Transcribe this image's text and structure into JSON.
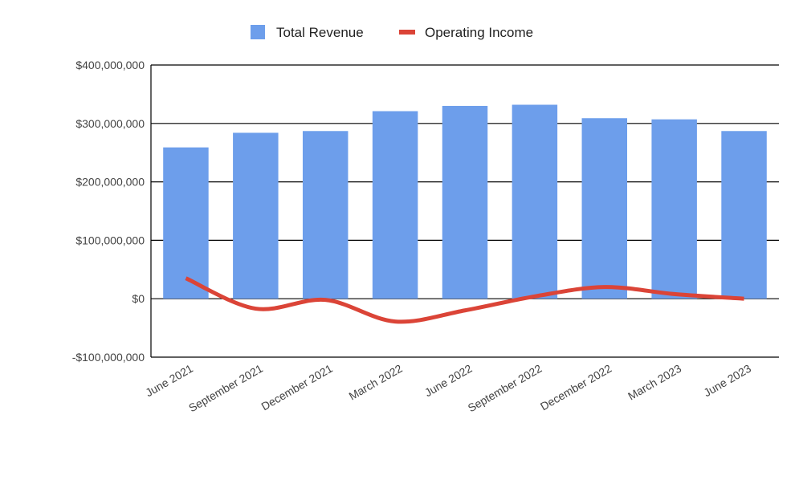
{
  "chart_data": {
    "type": "bar",
    "categories": [
      "June 2021",
      "September 2021",
      "December 2021",
      "March 2022",
      "June 2022",
      "September 2022",
      "December 2022",
      "March 2023",
      "June 2023"
    ],
    "series": [
      {
        "name": "Total Revenue",
        "type": "bar",
        "color": "#6d9eeb",
        "values": [
          259000000,
          284000000,
          287000000,
          321000000,
          330000000,
          332000000,
          309000000,
          307000000,
          287000000
        ]
      },
      {
        "name": "Operating Income",
        "type": "line",
        "color": "#db4437",
        "values": [
          35000000,
          -17000000,
          -2000000,
          -39000000,
          -20000000,
          4000000,
          20000000,
          8000000,
          0
        ]
      }
    ],
    "title": "",
    "xlabel": "",
    "ylabel": "",
    "ylim": [
      -100000000,
      400000000
    ],
    "yticks": [
      400000000,
      300000000,
      200000000,
      100000000,
      0,
      -100000000
    ],
    "ytick_labels": [
      "$400,000,000",
      "$300,000,000",
      "$200,000,000",
      "$100,000,000",
      "$0",
      "-$100,000,000"
    ],
    "grid": true,
    "legend": "top",
    "line_smooth": true
  }
}
